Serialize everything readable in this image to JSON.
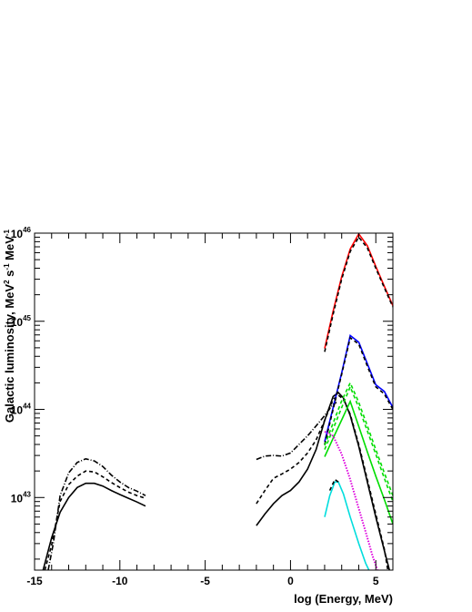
{
  "chart_data": {
    "type": "line",
    "title": "",
    "xlabel": "log (Energy, MeV)",
    "ylabel_parts": [
      "Galactic luminosity, MeV",
      "2",
      " s",
      "-1",
      " MeV",
      "-1"
    ],
    "xlim": [
      -15,
      6
    ],
    "ylim": [
      1.5e+42,
      1e+46
    ],
    "yscale": "log",
    "grid": false,
    "x_tick_labels": [
      "-15",
      "-10",
      "-5",
      "0",
      "5"
    ],
    "x_tick_values": [
      -15,
      -10,
      -5,
      0,
      5
    ],
    "y_tick_labels": [
      {
        "base": "10",
        "exp": "43",
        "value": 1e+43
      },
      {
        "base": "10",
        "exp": "44",
        "value": 1e+44
      },
      {
        "base": "10",
        "exp": "45",
        "value": 1e+45
      },
      {
        "base": "10",
        "exp": "46",
        "value": 1e+46
      }
    ],
    "series": [
      {
        "color": "#000000",
        "dash": "solid",
        "points": [
          [
            -14.5,
            1.5e+42
          ],
          [
            -14,
            3.5e+42
          ],
          [
            -13.5,
            6.8e+42
          ],
          [
            -13,
            1e+43
          ],
          [
            -12.5,
            1.3e+43
          ],
          [
            -12,
            1.45e+43
          ],
          [
            -11.5,
            1.45e+43
          ],
          [
            -11,
            1.35e+43
          ],
          [
            -10.5,
            1.2e+43
          ],
          [
            -10,
            1.08e+43
          ],
          [
            -9.5,
            9.8e+42
          ],
          [
            -9,
            8.9e+42
          ],
          [
            -8.5,
            8e+42
          ]
        ]
      },
      {
        "color": "#000000",
        "dash": "dashed",
        "points": [
          [
            -14.4,
            1.5e+42
          ],
          [
            -14,
            2.9e+42
          ],
          [
            -13.5,
            9e+42
          ],
          [
            -13,
            1.4e+43
          ],
          [
            -12.5,
            1.75e+43
          ],
          [
            -12,
            2e+43
          ],
          [
            -11.5,
            1.95e+43
          ],
          [
            -11,
            1.72e+43
          ],
          [
            -10.5,
            1.48e+43
          ],
          [
            -10,
            1.3e+43
          ],
          [
            -9.5,
            1.15e+43
          ],
          [
            -9,
            1.05e+43
          ],
          [
            -8.5,
            9.8e+42
          ]
        ]
      },
      {
        "color": "#000000",
        "dash": "dashdot",
        "points": [
          [
            -14.2,
            1.5e+42
          ],
          [
            -13.9,
            3e+42
          ],
          [
            -13.5,
            1.05e+43
          ],
          [
            -13,
            1.9e+43
          ],
          [
            -12.5,
            2.5e+43
          ],
          [
            -12,
            2.75e+43
          ],
          [
            -11.5,
            2.6e+43
          ],
          [
            -11,
            2.25e+43
          ],
          [
            -10.5,
            1.8e+43
          ],
          [
            -10,
            1.5e+43
          ],
          [
            -9.5,
            1.3e+43
          ],
          [
            -9,
            1.18e+43
          ],
          [
            -8.5,
            1.05e+43
          ]
        ]
      },
      {
        "color": "#000000",
        "dash": "solid",
        "points": [
          [
            -2,
            4.8e+42
          ],
          [
            -1.5,
            6.5e+42
          ],
          [
            -1,
            8.5e+42
          ],
          [
            -0.5,
            1.05e+43
          ],
          [
            0,
            1.2e+43
          ],
          [
            0.5,
            1.5e+43
          ],
          [
            1,
            2.1e+43
          ],
          [
            1.5,
            3.5e+43
          ],
          [
            2,
            7.5e+43
          ],
          [
            2.5,
            1.4e+44
          ],
          [
            2.8,
            1.55e+44
          ],
          [
            3.1,
            1.35e+44
          ],
          [
            3.5,
            8.5e+43
          ],
          [
            4,
            3.8e+43
          ],
          [
            4.5,
            1.5e+43
          ],
          [
            5,
            6e+42
          ],
          [
            5.5,
            2.5e+42
          ],
          [
            5.8,
            1.5e+42
          ]
        ]
      },
      {
        "color": "#000000",
        "dash": "dashed",
        "points": [
          [
            -2,
            8.5e+42
          ],
          [
            -1.5,
            1.2e+43
          ],
          [
            -1,
            1.65e+43
          ],
          [
            -0.5,
            1.85e+43
          ],
          [
            0,
            2.1e+43
          ],
          [
            0.5,
            2.5e+43
          ],
          [
            1,
            3.2e+43
          ],
          [
            1.5,
            4.5e+43
          ],
          [
            2,
            7.5e+43
          ],
          [
            2.5,
            1.3e+44
          ],
          [
            2.8,
            1.45e+44
          ],
          [
            3.1,
            1.3e+44
          ],
          [
            3.5,
            8.8e+43
          ],
          [
            4,
            4e+43
          ],
          [
            4.5,
            1.6e+43
          ],
          [
            5,
            6.5e+42
          ],
          [
            5.5,
            2.6e+42
          ],
          [
            5.7,
            1.5e+42
          ]
        ]
      },
      {
        "color": "#000000",
        "dash": "dashdot",
        "points": [
          [
            -2,
            2.7e+43
          ],
          [
            -1.5,
            2.95e+43
          ],
          [
            -1,
            3e+43
          ],
          [
            -0.5,
            2.95e+43
          ],
          [
            0,
            3.2e+43
          ],
          [
            0.5,
            4e+43
          ],
          [
            1,
            5e+43
          ],
          [
            1.5,
            6.5e+43
          ],
          [
            2,
            8.5e+43
          ],
          [
            2.5,
            1.15e+44
          ],
          [
            2.7,
            1.2e+44
          ]
        ]
      },
      {
        "color": "#ff0000",
        "dash": "solid",
        "points": [
          [
            2,
            4.9e+44
          ],
          [
            2.5,
            1.3e+45
          ],
          [
            3,
            3.2e+45
          ],
          [
            3.5,
            6.6e+45
          ],
          [
            4,
            9.8e+45
          ],
          [
            4.5,
            7.2e+45
          ],
          [
            5,
            4.2e+45
          ],
          [
            5.5,
            2.5e+45
          ],
          [
            6,
            1.5e+45
          ]
        ]
      },
      {
        "color": "#000000",
        "dash": "dashed",
        "points": [
          [
            2,
            4.5e+44
          ],
          [
            2.5,
            1.2e+45
          ],
          [
            3,
            3e+45
          ],
          [
            3.5,
            6.2e+45
          ],
          [
            4,
            9e+45
          ],
          [
            4.5,
            6.8e+45
          ],
          [
            5,
            4e+45
          ],
          [
            5.5,
            2.4e+45
          ],
          [
            6,
            1.45e+45
          ]
        ]
      },
      {
        "color": "#0000ff",
        "dash": "solid",
        "points": [
          [
            2,
            4.3e+43
          ],
          [
            2.5,
            1.05e+44
          ],
          [
            3,
            2.6e+44
          ],
          [
            3.5,
            6.9e+44
          ],
          [
            4,
            5.8e+44
          ],
          [
            4.5,
            3.3e+44
          ],
          [
            5,
            1.9e+44
          ],
          [
            5.5,
            1.6e+44
          ],
          [
            6,
            1.05e+44
          ]
        ]
      },
      {
        "color": "#000000",
        "dash": "dashed",
        "points": [
          [
            2,
            4e+43
          ],
          [
            2.5,
            1e+44
          ],
          [
            3,
            2.5e+44
          ],
          [
            3.5,
            6.5e+44
          ],
          [
            4,
            5.5e+44
          ],
          [
            4.5,
            3.1e+44
          ],
          [
            5,
            1.8e+44
          ],
          [
            5.5,
            1.5e+44
          ],
          [
            6,
            1e+44
          ]
        ]
      },
      {
        "color": "#00dd00",
        "dash": "solid",
        "points": [
          [
            2,
            2.9e+43
          ],
          [
            2.5,
            4.7e+43
          ],
          [
            3,
            7.6e+43
          ],
          [
            3.5,
            1.23e+44
          ],
          [
            4,
            6.4e+43
          ],
          [
            4.5,
            3.3e+43
          ],
          [
            5,
            1.75e+43
          ],
          [
            5.5,
            9.5e+42
          ],
          [
            6,
            5e+42
          ]
        ]
      },
      {
        "color": "#00dd00",
        "dash": "dashed",
        "points": [
          [
            2,
            3.5e+43
          ],
          [
            2.5,
            6e+43
          ],
          [
            3,
            1.05e+44
          ],
          [
            3.5,
            1.8e+44
          ],
          [
            4,
            1.05e+44
          ],
          [
            4.5,
            5.7e+43
          ],
          [
            5,
            3.1e+43
          ],
          [
            5.5,
            1.65e+43
          ],
          [
            6,
            9e+42
          ]
        ]
      },
      {
        "color": "#00dd00",
        "dash": "dashed",
        "points": [
          [
            2,
            3.9e+43
          ],
          [
            2.5,
            7e+43
          ],
          [
            3,
            1.25e+44
          ],
          [
            3.5,
            2e+44
          ],
          [
            4,
            1.2e+44
          ],
          [
            4.5,
            6.5e+43
          ],
          [
            5,
            3.5e+43
          ],
          [
            5.5,
            1.9e+43
          ],
          [
            6,
            1.05e+43
          ]
        ]
      },
      {
        "color": "#dd00dd",
        "dash": "dotted",
        "points": [
          [
            2,
            5.6e+43
          ],
          [
            2.5,
            5e+43
          ],
          [
            3,
            3.1e+43
          ],
          [
            3.5,
            1.6e+43
          ],
          [
            4,
            7.5e+42
          ],
          [
            4.5,
            3.5e+42
          ],
          [
            4.8,
            2.2e+42
          ],
          [
            5.1,
            1.5e+42
          ]
        ]
      },
      {
        "color": "#00dddd",
        "dash": "solid",
        "points": [
          [
            2,
            6e+42
          ],
          [
            2.3,
            1.05e+43
          ],
          [
            2.6,
            1.5e+43
          ],
          [
            2.8,
            1.5e+43
          ],
          [
            3.1,
            1.1e+43
          ],
          [
            3.5,
            6e+42
          ],
          [
            4,
            3e+42
          ],
          [
            4.4,
            1.8e+42
          ],
          [
            4.6,
            1.5e+42
          ]
        ]
      },
      {
        "color": "#000000",
        "dash": "dashed",
        "points": [
          [
            2.3,
            1.2e+43
          ],
          [
            2.6,
            1.6e+43
          ],
          [
            2.8,
            1.5e+43
          ]
        ]
      }
    ]
  }
}
